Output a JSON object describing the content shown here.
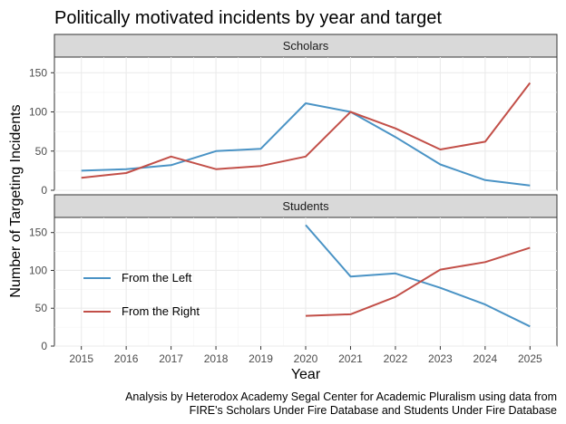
{
  "chart_data": {
    "type": "line",
    "title": "Politically motivated incidents by year and target",
    "xlabel": "Year",
    "ylabel": "Number of Targeting Incidents",
    "x": [
      "2015",
      "2016",
      "2017",
      "2018",
      "2019",
      "2020",
      "2021",
      "2022",
      "2023",
      "2024",
      "2025"
    ],
    "ylim": [
      0,
      170
    ],
    "yticks": [
      "0",
      "50",
      "100",
      "150"
    ],
    "grid": true,
    "legend_position": "left, inside Students panel",
    "legend": [
      "From the Left",
      "From the Right"
    ],
    "colors": {
      "From the Left": "#4a93c5",
      "From the Right": "#c24f48"
    },
    "panels": [
      {
        "strip": "Scholars",
        "series": [
          {
            "name": "From the Left",
            "values": [
              25,
              27,
              32,
              50,
              53,
              111,
              100,
              68,
              33,
              13,
              6
            ]
          },
          {
            "name": "From the Right",
            "values": [
              16,
              22,
              43,
              27,
              31,
              43,
              100,
              79,
              52,
              62,
              137
            ]
          }
        ]
      },
      {
        "strip": "Students",
        "series": [
          {
            "name": "From the Left",
            "values": [
              null,
              null,
              null,
              null,
              null,
              160,
              92,
              96,
              77,
              55,
              26
            ]
          },
          {
            "name": "From the Right",
            "values": [
              null,
              null,
              null,
              null,
              null,
              40,
              42,
              65,
              101,
              111,
              130
            ]
          }
        ]
      }
    ],
    "caption": [
      "Analysis by Heterodox Academy Segal Center for Academic Pluralism using data from",
      "FIRE's Scholars Under Fire Database and Students Under Fire Database"
    ]
  }
}
